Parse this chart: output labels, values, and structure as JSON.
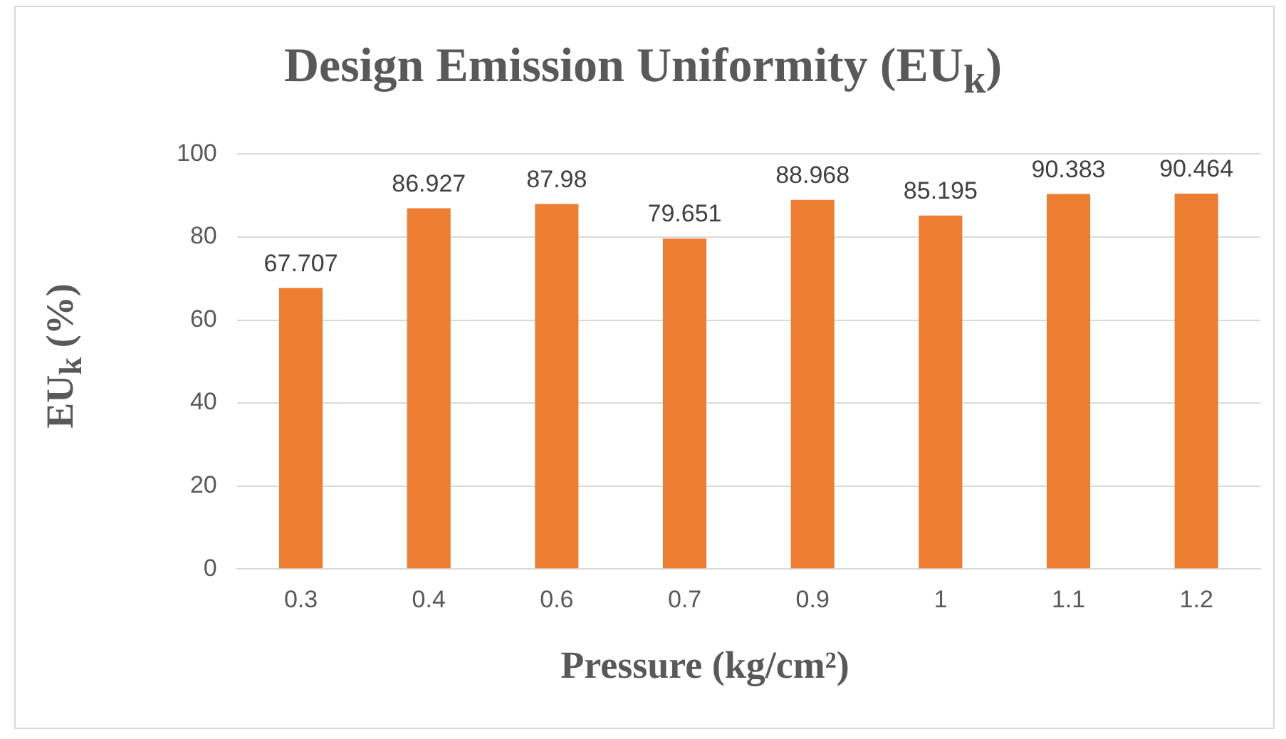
{
  "chart_data": {
    "type": "bar",
    "title": "Design Emission Uniformity (EU$_{k}$)",
    "xlabel": "Pressure (kg/cm²)",
    "ylabel": "EU$_{k}$ (%)",
    "categories": [
      "0.3",
      "0.4",
      "0.6",
      "0.7",
      "0.9",
      "1",
      "1.1",
      "1.2"
    ],
    "values": [
      67.707,
      86.927,
      87.98,
      79.651,
      88.968,
      85.195,
      90.383,
      90.464
    ],
    "color": "#ed7d31",
    "ylim": [
      0,
      100
    ],
    "yticks": [
      0,
      20,
      40,
      60,
      80,
      100
    ],
    "grid": "y",
    "data_labels": true,
    "legend": false
  }
}
